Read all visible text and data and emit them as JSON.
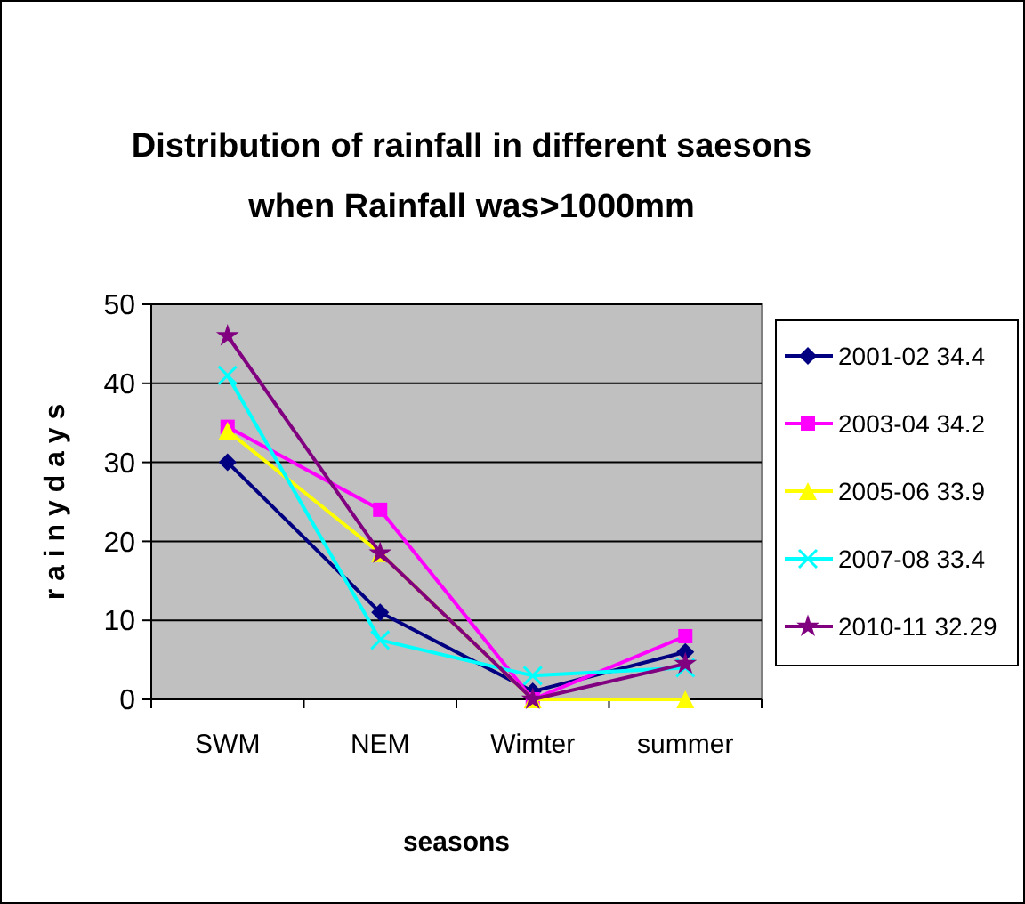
{
  "chart_data": {
    "type": "line",
    "title": "Distribution of rainfall in different saesons when Rainfall was>1000mm",
    "xlabel": "seasons",
    "ylabel": "r a i n y  d a y s",
    "categories": [
      "SWM",
      "NEM",
      "Wimter",
      "summer"
    ],
    "series": [
      {
        "name": "2001-02 34.4",
        "color": "#000080",
        "marker": "diamond",
        "values": [
          30,
          11,
          1,
          6
        ]
      },
      {
        "name": "2003-04 34.2",
        "color": "#ff00ff",
        "marker": "square",
        "values": [
          34.5,
          24,
          0,
          8
        ]
      },
      {
        "name": "2005-06 33.9",
        "color": "#ffff00",
        "marker": "triangle",
        "values": [
          34,
          18.5,
          0,
          0
        ]
      },
      {
        "name": "2007-08 33.4",
        "color": "#00ffff",
        "marker": "cross",
        "values": [
          41,
          7.5,
          3,
          4
        ]
      },
      {
        "name": "2010-11 32.29",
        "color": "#800080",
        "marker": "star",
        "values": [
          46,
          18.5,
          0,
          4.5
        ]
      }
    ],
    "ylim": [
      0,
      50
    ],
    "yticks": [
      0,
      10,
      20,
      30,
      40,
      50
    ],
    "grid": "y",
    "legend": "right"
  }
}
